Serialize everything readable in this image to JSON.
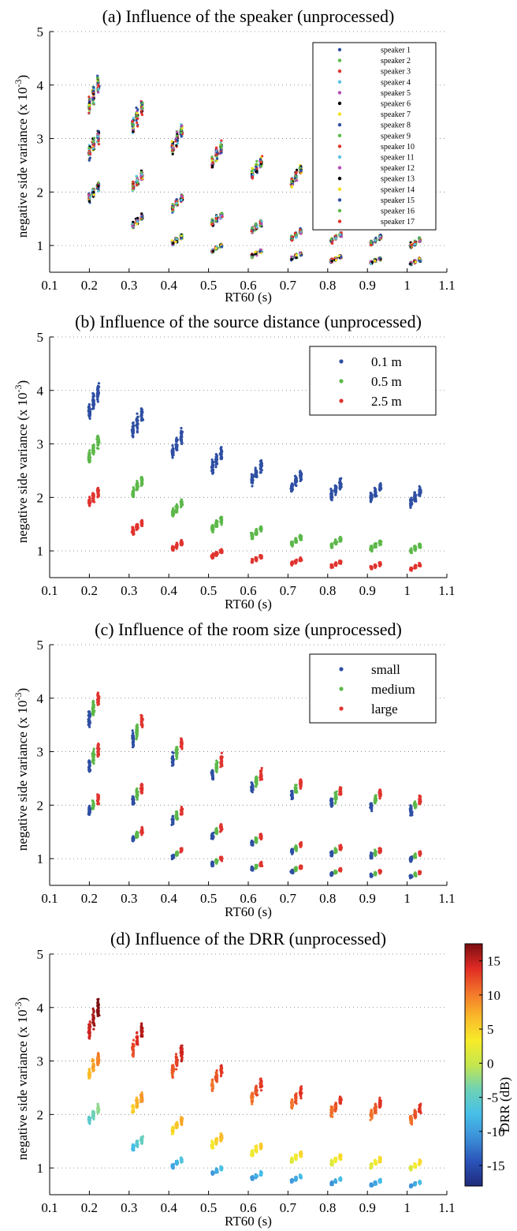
{
  "colors": {
    "speakers": [
      "#2e4fa3",
      "#5cb84a",
      "#e0342f",
      "#5bc4e0",
      "#b44fb4",
      "#000000",
      "#f2e21e",
      "#2e4fa3",
      "#5cb84a",
      "#e0342f",
      "#5bc4e0",
      "#b44fb4",
      "#000000",
      "#f2e21e",
      "#2e4fa3",
      "#5cb84a",
      "#e0342f"
    ],
    "distance": [
      "#2e4fa3",
      "#5cb84a",
      "#e0342f"
    ],
    "room": [
      "#2e4fa3",
      "#5cb84a",
      "#e0342f"
    ]
  },
  "colorbar": {
    "label": "DRR (dB)",
    "range": [
      -18,
      17.5
    ],
    "ticks": [
      15,
      10,
      5,
      0,
      -5,
      -10,
      -15
    ],
    "colors": [
      "#1f2a7a",
      "#2a53b8",
      "#3c8fd8",
      "#47c0e8",
      "#6fd2b4",
      "#c4e64e",
      "#f7ec2a",
      "#f9b82a",
      "#f2742a",
      "#e02a24",
      "#7a0d10"
    ]
  },
  "chart_data": [
    {
      "type": "scatter",
      "title": "(a) Influence of the speaker (unprocessed)",
      "xlabel": "RT60 (s)",
      "ylabel": "negative side variance (x 10",
      "ylabel_exp": "-3",
      "ylabel_close": ")",
      "xlim": [
        0.1,
        1.1
      ],
      "ylim": [
        0.5,
        5
      ],
      "xticks": [
        "0.1",
        "0.2",
        "0.3",
        "0.4",
        "0.5",
        "0.6",
        "0.7",
        "0.8",
        "0.9",
        "1",
        "1.1"
      ],
      "yticks": [
        "1",
        "2",
        "3",
        "4",
        "5"
      ],
      "grid": true,
      "legend_position": "top-right",
      "legend": [
        "speaker 1",
        "speaker 2",
        "speaker 3",
        "speaker 4",
        "speaker 5",
        "speaker 6",
        "speaker 7",
        "speaker 8",
        "speaker 9",
        "speaker 10",
        "speaker 11",
        "speaker 12",
        "speaker 13",
        "speaker 14",
        "speaker 15",
        "speaker 16",
        "speaker 17"
      ]
    },
    {
      "type": "scatter",
      "title": "(b) Influence of the source distance (unprocessed)",
      "xlabel": "RT60 (s)",
      "ylabel": "negative side variance (x 10",
      "ylabel_exp": "-3",
      "ylabel_close": ")",
      "xlim": [
        0.1,
        1.1
      ],
      "ylim": [
        0.5,
        5
      ],
      "xticks": [
        "0.1",
        "0.2",
        "0.3",
        "0.4",
        "0.5",
        "0.6",
        "0.7",
        "0.8",
        "0.9",
        "1",
        "1.1"
      ],
      "yticks": [
        "1",
        "2",
        "3",
        "4",
        "5"
      ],
      "grid": true,
      "legend_position": "top-right",
      "legend": [
        "0.1 m",
        "0.5 m",
        "2.5 m"
      ]
    },
    {
      "type": "scatter",
      "title": "(c) Influence of the room size (unprocessed)",
      "xlabel": "RT60 (s)",
      "ylabel": "negative side variance (x 10",
      "ylabel_exp": "-3",
      "ylabel_close": ")",
      "xlim": [
        0.1,
        1.1
      ],
      "ylim": [
        0.5,
        5
      ],
      "xticks": [
        "0.1",
        "0.2",
        "0.3",
        "0.4",
        "0.5",
        "0.6",
        "0.7",
        "0.8",
        "0.9",
        "1",
        "1.1"
      ],
      "yticks": [
        "1",
        "2",
        "3",
        "4",
        "5"
      ],
      "grid": true,
      "legend_position": "top-right",
      "legend": [
        "small",
        "medium",
        "large"
      ]
    },
    {
      "type": "scatter",
      "title": "(d) Influence of the DRR (unprocessed)",
      "xlabel": "RT60 (s)",
      "ylabel": "negative side variance (x 10",
      "ylabel_exp": "-3",
      "ylabel_close": ")",
      "xlim": [
        0.1,
        1.1
      ],
      "ylim": [
        0.5,
        5
      ],
      "xticks": [
        "0.1",
        "0.2",
        "0.3",
        "0.4",
        "0.5",
        "0.6",
        "0.7",
        "0.8",
        "0.9",
        "1",
        "1.1"
      ],
      "yticks": [
        "1",
        "2",
        "3",
        "4",
        "5"
      ],
      "grid": true,
      "legend_position": "none",
      "legend": []
    }
  ],
  "clusters": {
    "rt60": [
      0.21,
      0.32,
      0.42,
      0.52,
      0.62,
      0.72,
      0.82,
      0.92,
      1.02
    ],
    "distance_0.1m": [
      3.8,
      3.4,
      3.0,
      2.7,
      2.45,
      2.3,
      2.15,
      2.1,
      2.0
    ],
    "distance_0.5m": [
      2.9,
      2.2,
      1.8,
      1.5,
      1.35,
      1.2,
      1.15,
      1.1,
      1.05
    ],
    "distance_2.5m": [
      2.0,
      1.45,
      1.1,
      0.95,
      0.85,
      0.8,
      0.75,
      0.72,
      0.7
    ],
    "room_offsets": [
      -0.01,
      0.0,
      0.012
    ],
    "drr_dB": {
      "distance_0.1m": [
        16,
        14,
        13,
        12,
        12,
        12,
        12,
        12,
        12
      ],
      "distance_0.5m": [
        8,
        7,
        6,
        5,
        4,
        3,
        3,
        3,
        3
      ],
      "distance_2.5m": [
        -4,
        -6,
        -8,
        -9,
        -9,
        -9,
        -9,
        -9,
        -9
      ]
    }
  }
}
